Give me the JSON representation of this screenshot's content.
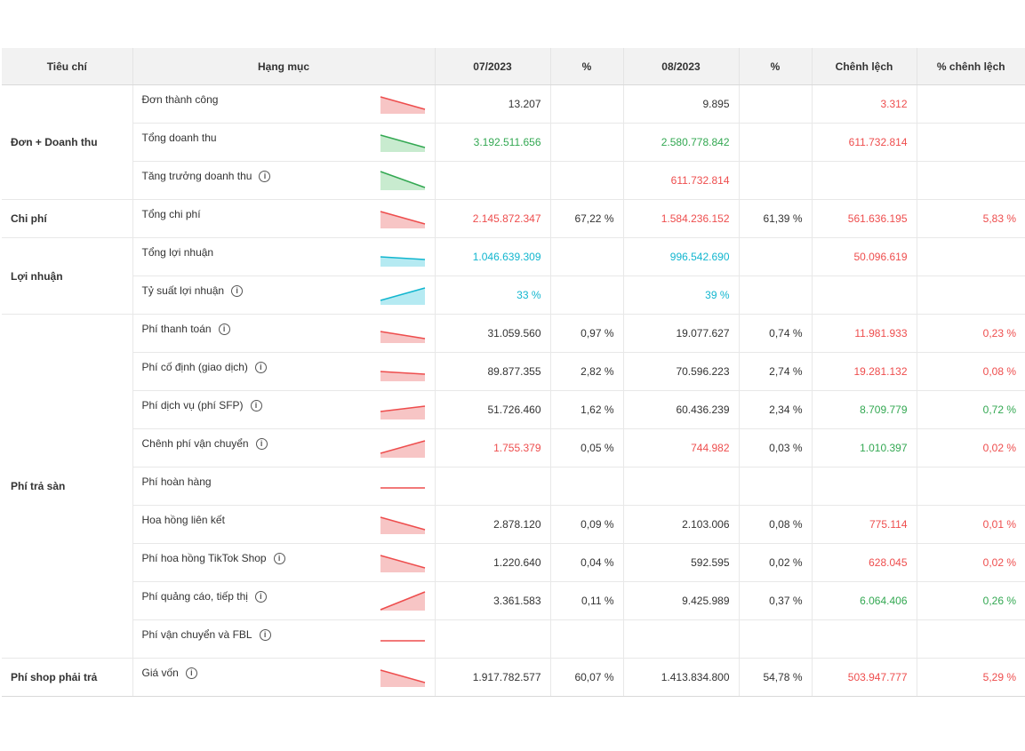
{
  "headers": [
    "Tiêu chí",
    "Hạng mục",
    "07/2023",
    "%",
    "08/2023",
    "%",
    "Chênh lệch",
    "% chênh lệch"
  ],
  "colors": {
    "red": "#ee4d4d",
    "green": "#33a852",
    "cyan": "#12b6cf",
    "dark": "#333333"
  },
  "groups": [
    "Đơn + Doanh thu",
    "Chi phí",
    "Lợi nhuận",
    "Phí trả sàn",
    "Phí shop phải trả"
  ],
  "rows": [
    {
      "label": "Đơn thành công",
      "info": false,
      "trend": "down",
      "color": "red",
      "jul": "13.207",
      "jul_pct": "",
      "aug": "9.895",
      "aug_pct": "",
      "diff": "3.312",
      "diff_pct": "",
      "jul_c": "dark",
      "aug_c": "dark",
      "diff_c": "red",
      "diffp_c": "red"
    },
    {
      "label": "Tổng doanh thu",
      "info": false,
      "trend": "down",
      "color": "green",
      "jul": "3.192.511.656",
      "jul_pct": "",
      "aug": "2.580.778.842",
      "aug_pct": "",
      "diff": "611.732.814",
      "diff_pct": "",
      "jul_c": "green",
      "aug_c": "green",
      "diff_c": "red",
      "diffp_c": "red"
    },
    {
      "label": "Tăng trưởng doanh thu",
      "info": true,
      "trend": "down-steep",
      "color": "green",
      "jul": "",
      "jul_pct": "",
      "aug": "611.732.814",
      "aug_pct": "",
      "diff": "",
      "diff_pct": "",
      "jul_c": "dark",
      "aug_c": "red",
      "diff_c": "red",
      "diffp_c": "red"
    },
    {
      "label": "Tổng chi phí",
      "info": false,
      "trend": "down",
      "color": "red",
      "jul": "2.145.872.347",
      "jul_pct": "67,22 %",
      "aug": "1.584.236.152",
      "aug_pct": "61,39 %",
      "diff": "561.636.195",
      "diff_pct": "5,83 %",
      "jul_c": "red",
      "aug_c": "red",
      "diff_c": "red",
      "diffp_c": "red"
    },
    {
      "label": "Tổng lợi nhuận",
      "info": false,
      "trend": "flat-down",
      "color": "cyan",
      "jul": "1.046.639.309",
      "jul_pct": "",
      "aug": "996.542.690",
      "aug_pct": "",
      "diff": "50.096.619",
      "diff_pct": "",
      "jul_c": "cyan",
      "aug_c": "cyan",
      "diff_c": "red",
      "diffp_c": "red"
    },
    {
      "label": "Tỷ suất lợi nhuận",
      "info": true,
      "trend": "up",
      "color": "cyan",
      "jul": "33 %",
      "jul_pct": "",
      "aug": "39 %",
      "aug_pct": "",
      "diff": "",
      "diff_pct": "",
      "jul_c": "cyan",
      "aug_c": "cyan",
      "diff_c": "red",
      "diffp_c": "red"
    },
    {
      "label": "Phí thanh toán",
      "info": true,
      "trend": "down-mild",
      "color": "red",
      "jul": "31.059.560",
      "jul_pct": "0,97 %",
      "aug": "19.077.627",
      "aug_pct": "0,74 %",
      "diff": "11.981.933",
      "diff_pct": "0,23 %",
      "jul_c": "dark",
      "aug_c": "dark",
      "diff_c": "red",
      "diffp_c": "red"
    },
    {
      "label": "Phí cố định (giao dịch)",
      "info": true,
      "trend": "flat-down",
      "color": "red",
      "jul": "89.877.355",
      "jul_pct": "2,82 %",
      "aug": "70.596.223",
      "aug_pct": "2,74 %",
      "diff": "19.281.132",
      "diff_pct": "0,08 %",
      "jul_c": "dark",
      "aug_c": "dark",
      "diff_c": "red",
      "diffp_c": "red"
    },
    {
      "label": "Phí dịch vụ (phí SFP)",
      "info": true,
      "trend": "up-mild",
      "color": "red",
      "jul": "51.726.460",
      "jul_pct": "1,62 %",
      "aug": "60.436.239",
      "aug_pct": "2,34 %",
      "diff": "8.709.779",
      "diff_pct": "0,72 %",
      "jul_c": "dark",
      "aug_c": "dark",
      "diff_c": "green",
      "diffp_c": "green"
    },
    {
      "label": "Chênh phí vận chuyển",
      "info": true,
      "trend": "up",
      "color": "red",
      "jul": "1.755.379",
      "jul_pct": "0,05 %",
      "aug": "744.982",
      "aug_pct": "0,03 %",
      "diff": "1.010.397",
      "diff_pct": "0,02 %",
      "jul_c": "red",
      "aug_c": "red",
      "diff_c": "green",
      "diffp_c": "red"
    },
    {
      "label": "Phí hoàn hàng",
      "info": false,
      "trend": "flat",
      "color": "red",
      "jul": "",
      "jul_pct": "",
      "aug": "",
      "aug_pct": "",
      "diff": "",
      "diff_pct": "",
      "jul_c": "dark",
      "aug_c": "dark",
      "diff_c": "red",
      "diffp_c": "red"
    },
    {
      "label": "Hoa hồng liên kết",
      "info": false,
      "trend": "down",
      "color": "red",
      "jul": "2.878.120",
      "jul_pct": "0,09 %",
      "aug": "2.103.006",
      "aug_pct": "0,08 %",
      "diff": "775.114",
      "diff_pct": "0,01 %",
      "jul_c": "dark",
      "aug_c": "dark",
      "diff_c": "red",
      "diffp_c": "red"
    },
    {
      "label": "Phí hoa hồng TikTok Shop",
      "info": true,
      "trend": "down",
      "color": "red",
      "jul": "1.220.640",
      "jul_pct": "0,04 %",
      "aug": "592.595",
      "aug_pct": "0,02 %",
      "diff": "628.045",
      "diff_pct": "0,02 %",
      "jul_c": "dark",
      "aug_c": "dark",
      "diff_c": "red",
      "diffp_c": "red"
    },
    {
      "label": "Phí quảng cáo, tiếp thị",
      "info": true,
      "trend": "up-steep",
      "color": "red",
      "jul": "3.361.583",
      "jul_pct": "0,11 %",
      "aug": "9.425.989",
      "aug_pct": "0,37 %",
      "diff": "6.064.406",
      "diff_pct": "0,26 %",
      "jul_c": "dark",
      "aug_c": "dark",
      "diff_c": "green",
      "diffp_c": "green"
    },
    {
      "label": "Phí vận chuyển và FBL",
      "info": true,
      "trend": "flat",
      "color": "red",
      "jul": "",
      "jul_pct": "",
      "aug": "",
      "aug_pct": "",
      "diff": "",
      "diff_pct": "",
      "jul_c": "dark",
      "aug_c": "dark",
      "diff_c": "red",
      "diffp_c": "red"
    },
    {
      "label": "Giá vốn",
      "info": true,
      "trend": "down",
      "color": "red",
      "jul": "1.917.782.577",
      "jul_pct": "60,07 %",
      "aug": "1.413.834.800",
      "aug_pct": "54,78 %",
      "diff": "503.947.777",
      "diff_pct": "5,29 %",
      "jul_c": "dark",
      "aug_c": "dark",
      "diff_c": "red",
      "diffp_c": "red"
    }
  ]
}
